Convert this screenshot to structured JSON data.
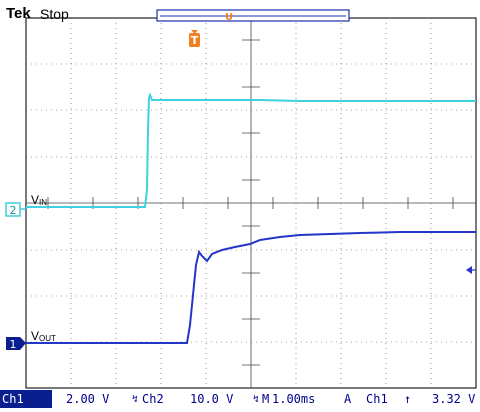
{
  "header": {
    "brand": "Tek",
    "status": "Stop",
    "trigger_marker_glyph": "T",
    "trigger_pos_glyph": "U"
  },
  "traces": {
    "vin": {
      "marker": "2",
      "label_main": "V",
      "label_sub": "IN",
      "color": "#3fd1dc"
    },
    "vout": {
      "marker": "1",
      "label_main": "V",
      "label_sub": "OUT",
      "color": "#2535c8"
    }
  },
  "footer": {
    "ch1_label": "Ch1",
    "ch1_scale": "2.00 V",
    "ch2_label": "Ch2",
    "ch2_scale": "10.0 V",
    "time_label": "M",
    "time_scale": "1.00ms",
    "acq_mode": "A",
    "trig_source": "Ch1",
    "trig_slope_glyph": "↑",
    "trig_level": "3.32 V"
  },
  "colors": {
    "trigger": "#f08020",
    "grid": "#3a3a3a",
    "frame_blue": "#1a2fb0"
  }
}
